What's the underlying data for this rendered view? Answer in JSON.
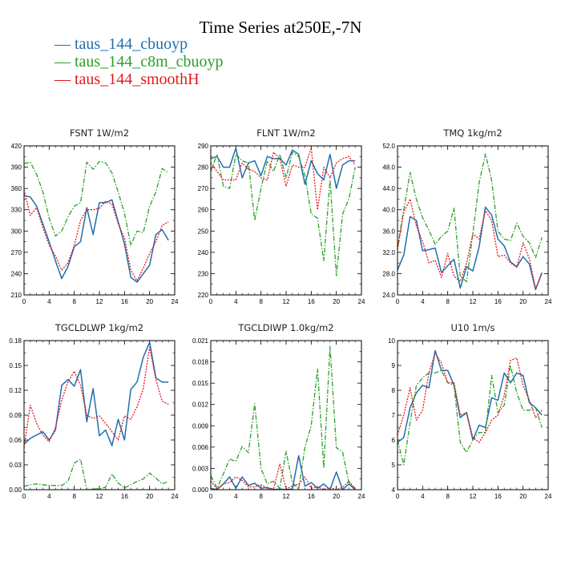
{
  "title": "Time Series at250E,-7N",
  "legend": [
    {
      "label": "taus_144_cbuoyp",
      "color": "#1f6fad"
    },
    {
      "label": "taus_144_c8m_cbuoyp",
      "color": "#2ca02c"
    },
    {
      "label": "taus_144_smoothH",
      "color": "#e31a1c"
    }
  ],
  "chart_data": [
    {
      "type": "line",
      "title": "FSNT   1W/m2",
      "xlim": [
        0,
        24
      ],
      "ylim": [
        210,
        420
      ],
      "xticks": [
        "0",
        "4",
        "8",
        "12",
        "16",
        "20",
        "24"
      ],
      "yticks": [
        "210",
        "240",
        "270",
        "300",
        "330",
        "360",
        "390",
        "420"
      ],
      "x": [
        0,
        1,
        2,
        3,
        4,
        5,
        6,
        7,
        8,
        9,
        10,
        11,
        12,
        13,
        14,
        15,
        16,
        17,
        18,
        19,
        20,
        21,
        22,
        23
      ],
      "series": [
        {
          "name": "taus_144_cbuoyp",
          "color": "#1f6fad",
          "dash": "",
          "values": [
            350,
            348,
            335,
            310,
            285,
            258,
            233,
            250,
            278,
            285,
            333,
            295,
            340,
            340,
            344,
            313,
            282,
            235,
            228,
            240,
            252,
            295,
            302,
            287
          ]
        },
        {
          "name": "taus_144_c8m_cbuoyp",
          "color": "#2ca02c",
          "dash": "6,2,1.5,2",
          "values": [
            395,
            397,
            380,
            355,
            318,
            293,
            300,
            320,
            335,
            340,
            397,
            387,
            398,
            396,
            382,
            355,
            325,
            280,
            300,
            298,
            335,
            355,
            388,
            382
          ]
        },
        {
          "name": "taus_144_smoothH",
          "color": "#e31a1c",
          "dash": "2,1.5",
          "values": [
            358,
            322,
            333,
            305,
            280,
            265,
            245,
            255,
            280,
            315,
            330,
            330,
            332,
            342,
            338,
            310,
            290,
            245,
            230,
            248,
            268,
            285,
            308,
            313
          ]
        }
      ]
    },
    {
      "type": "line",
      "title": "FLNT   1W/m2",
      "xlim": [
        0,
        24
      ],
      "ylim": [
        220,
        290
      ],
      "xticks": [
        "0",
        "4",
        "8",
        "12",
        "16",
        "20",
        "24"
      ],
      "yticks": [
        "220",
        "230",
        "240",
        "250",
        "260",
        "270",
        "280",
        "290"
      ],
      "x": [
        0,
        1,
        2,
        3,
        4,
        5,
        6,
        7,
        8,
        9,
        10,
        11,
        12,
        13,
        14,
        15,
        16,
        17,
        18,
        19,
        20,
        21,
        22,
        23
      ],
      "series": [
        {
          "name": "taus_144_cbuoyp",
          "color": "#1f6fad",
          "dash": "",
          "values": [
            284,
            285,
            280,
            280,
            289,
            275,
            282,
            283,
            276,
            285,
            284,
            284,
            281,
            288,
            286,
            272,
            283,
            277,
            274,
            286,
            270,
            281,
            283,
            283
          ]
        },
        {
          "name": "taus_144_c8m_cbuoyp",
          "color": "#2ca02c",
          "dash": "6,2,1.5,2",
          "values": [
            278,
            286,
            271,
            270,
            286,
            283,
            282,
            255,
            270,
            283,
            278,
            286,
            275,
            287,
            285,
            276,
            258,
            256,
            236,
            274,
            229,
            258,
            265,
            280
          ]
        },
        {
          "name": "taus_144_smoothH",
          "color": "#e31a1c",
          "dash": "2,1.5",
          "values": [
            282,
            278,
            274,
            274,
            274,
            282,
            279,
            278,
            275,
            274,
            287,
            284,
            271,
            281,
            280,
            280,
            289,
            260,
            280,
            275,
            282,
            284,
            285,
            281
          ]
        }
      ]
    },
    {
      "type": "line",
      "title": "TMQ   1kg/m2",
      "xlim": [
        0,
        24
      ],
      "ylim": [
        24.0,
        52.0
      ],
      "xticks": [
        "0",
        "4",
        "8",
        "12",
        "16",
        "20",
        "24"
      ],
      "yticks": [
        "24.0",
        "28.0",
        "32.0",
        "36.0",
        "40.0",
        "44.0",
        "48.0",
        "52.0"
      ],
      "x": [
        0,
        1,
        2,
        3,
        4,
        5,
        6,
        7,
        8,
        9,
        10,
        11,
        12,
        13,
        14,
        15,
        16,
        17,
        18,
        19,
        20,
        21,
        22,
        23
      ],
      "series": [
        {
          "name": "taus_144_cbuoyp",
          "color": "#1f6fad",
          "dash": "",
          "values": [
            28.7,
            31.5,
            38.7,
            38.0,
            32.3,
            32.5,
            32.8,
            28.2,
            29.5,
            30.7,
            25.3,
            29.3,
            28.5,
            33.0,
            40.5,
            39.0,
            34.5,
            33.2,
            30.2,
            29.3,
            31.2,
            29.8,
            25.0,
            28.2
          ]
        },
        {
          "name": "taus_144_c8m_cbuoyp",
          "color": "#2ca02c",
          "dash": "6,2,1.5,2",
          "values": [
            33.0,
            40.0,
            47.0,
            42.0,
            38.5,
            36.2,
            33.5,
            35.0,
            36.0,
            40.3,
            27.5,
            26.5,
            35.5,
            45.0,
            50.5,
            45.5,
            36.0,
            34.5,
            34.2,
            37.5,
            35.0,
            33.8,
            31.0,
            34.8
          ]
        },
        {
          "name": "taus_144_smoothH",
          "color": "#e31a1c",
          "dash": "2,1.5",
          "values": [
            32.5,
            39.5,
            42.0,
            37.0,
            34.0,
            30.0,
            30.5,
            27.3,
            31.8,
            27.5,
            26.5,
            30.0,
            35.5,
            34.5,
            39.8,
            38.0,
            31.2,
            31.5,
            30.0,
            29.2,
            33.8,
            30.8,
            25.2,
            28.0
          ]
        }
      ]
    },
    {
      "type": "line",
      "title": "TGCLDLWP   1kg/m2",
      "xlim": [
        0,
        24
      ],
      "ylim": [
        0.0,
        0.18
      ],
      "xticks": [
        "0",
        "4",
        "8",
        "12",
        "16",
        "20",
        "24"
      ],
      "yticks": [
        "0.00",
        "0.03",
        "0.06",
        "0.09",
        "0.12",
        "0.15",
        "0.18"
      ],
      "x": [
        0,
        1,
        2,
        3,
        4,
        5,
        6,
        7,
        8,
        9,
        10,
        11,
        12,
        13,
        14,
        15,
        16,
        17,
        18,
        19,
        20,
        21,
        22,
        23
      ],
      "series": [
        {
          "name": "taus_144_cbuoyp",
          "color": "#1f6fad",
          "dash": "",
          "values": [
            0.055,
            0.062,
            0.066,
            0.07,
            0.06,
            0.072,
            0.126,
            0.133,
            0.125,
            0.145,
            0.082,
            0.122,
            0.065,
            0.072,
            0.053,
            0.085,
            0.06,
            0.121,
            0.13,
            0.16,
            0.178,
            0.135,
            0.13,
            0.13
          ]
        },
        {
          "name": "taus_144_c8m_cbuoyp",
          "color": "#2ca02c",
          "dash": "6,2,1.5,2",
          "values": [
            0.004,
            0.006,
            0.007,
            0.006,
            0.005,
            0.005,
            0.005,
            0.01,
            0.032,
            0.037,
            0.0,
            0.001,
            0.001,
            0.003,
            0.019,
            0.008,
            0.002,
            0.006,
            0.01,
            0.013,
            0.02,
            0.014,
            0.007,
            0.01
          ]
        },
        {
          "name": "taus_144_smoothH",
          "color": "#e31a1c",
          "dash": "2,1.5",
          "values": [
            0.051,
            0.102,
            0.08,
            0.066,
            0.058,
            0.075,
            0.108,
            0.13,
            0.143,
            0.126,
            0.09,
            0.086,
            0.089,
            0.08,
            0.07,
            0.06,
            0.089,
            0.085,
            0.1,
            0.122,
            0.172,
            0.133,
            0.107,
            0.103
          ]
        }
      ]
    },
    {
      "type": "line",
      "title": "TGCLDIWP   1.0kg/m2",
      "xlim": [
        0,
        24
      ],
      "ylim": [
        0.0,
        0.021
      ],
      "xticks": [
        "0",
        "4",
        "8",
        "12",
        "16",
        "20",
        "24"
      ],
      "yticks": [
        "0.000",
        "0.003",
        "0.006",
        "0.009",
        "0.012",
        "0.015",
        "0.018",
        "0.021"
      ],
      "x": [
        0,
        1,
        2,
        3,
        4,
        5,
        6,
        7,
        8,
        9,
        10,
        11,
        12,
        13,
        14,
        15,
        16,
        17,
        18,
        19,
        20,
        21,
        22,
        23
      ],
      "series": [
        {
          "name": "taus_144_cbuoyp",
          "color": "#1f6fad",
          "dash": "",
          "values": [
            0.0002,
            0.0,
            0.0008,
            0.0018,
            0.0002,
            0.0018,
            0.0006,
            0.0009,
            0.0002,
            0.0003,
            0.0,
            0.0001,
            0.0,
            0.0001,
            0.0048,
            0.0005,
            0.001,
            0.0002,
            0.0008,
            0.0,
            0.0025,
            0.0,
            0.0008,
            0.0
          ]
        },
        {
          "name": "taus_144_c8m_cbuoyp",
          "color": "#2ca02c",
          "dash": "6,2,1.5,2",
          "values": [
            0.002,
            0.0002,
            0.0022,
            0.0043,
            0.004,
            0.0061,
            0.0052,
            0.0121,
            0.003,
            0.0008,
            0.0012,
            0.0002,
            0.0054,
            0.001,
            0.0001,
            0.006,
            0.009,
            0.017,
            0.003,
            0.0202,
            0.0059,
            0.0053,
            0.001,
            0.0002
          ]
        },
        {
          "name": "taus_144_smoothH",
          "color": "#e31a1c",
          "dash": "2,1.5",
          "values": [
            0.0012,
            0.0001,
            0.0008,
            0.001,
            0.0018,
            0.0013,
            0.0004,
            0.0004,
            0.0007,
            0.0002,
            0.0001,
            0.0036,
            0.0001,
            0.0005,
            0.0008,
            0.0018,
            0.0002,
            0.0004,
            0.0,
            0.0003,
            0.0,
            0.0003,
            0.0012,
            0.0001
          ]
        }
      ]
    },
    {
      "type": "line",
      "title": "U10   1m/s",
      "xlim": [
        0,
        24
      ],
      "ylim": [
        4,
        10
      ],
      "xticks": [
        "0",
        "4",
        "8",
        "12",
        "16",
        "20",
        "24"
      ],
      "yticks": [
        "4",
        "5",
        "6",
        "7",
        "8",
        "9",
        "10"
      ],
      "x": [
        0,
        1,
        2,
        3,
        4,
        5,
        6,
        7,
        8,
        9,
        10,
        11,
        12,
        13,
        14,
        15,
        16,
        17,
        18,
        19,
        20,
        21,
        22,
        23
      ],
      "series": [
        {
          "name": "taus_144_cbuoyp",
          "color": "#1f6fad",
          "dash": "",
          "values": [
            5.9,
            6.1,
            7.3,
            7.9,
            8.2,
            8.1,
            9.6,
            8.8,
            8.8,
            8.2,
            6.9,
            7.1,
            6.0,
            6.6,
            6.5,
            7.7,
            7.6,
            8.7,
            8.3,
            8.7,
            8.6,
            7.5,
            7.3,
            7.0
          ]
        },
        {
          "name": "taus_144_c8m_cbuoyp",
          "color": "#2ca02c",
          "dash": "6,2,1.5,2",
          "values": [
            6.0,
            5.0,
            6.7,
            8.2,
            8.5,
            8.7,
            8.7,
            8.8,
            8.3,
            8.2,
            5.9,
            5.5,
            6.0,
            6.3,
            6.3,
            8.6,
            7.1,
            7.4,
            9.0,
            7.9,
            7.2,
            7.2,
            7.3,
            6.5
          ]
        },
        {
          "name": "taus_144_smoothH",
          "color": "#e31a1c",
          "dash": "2,1.5",
          "values": [
            6.2,
            7.0,
            8.1,
            6.8,
            7.2,
            8.7,
            9.5,
            9.1,
            8.3,
            8.3,
            7.0,
            7.1,
            6.1,
            5.9,
            6.3,
            6.8,
            7.0,
            7.8,
            9.2,
            9.3,
            8.2,
            7.6,
            6.9,
            7.2
          ]
        }
      ]
    }
  ]
}
